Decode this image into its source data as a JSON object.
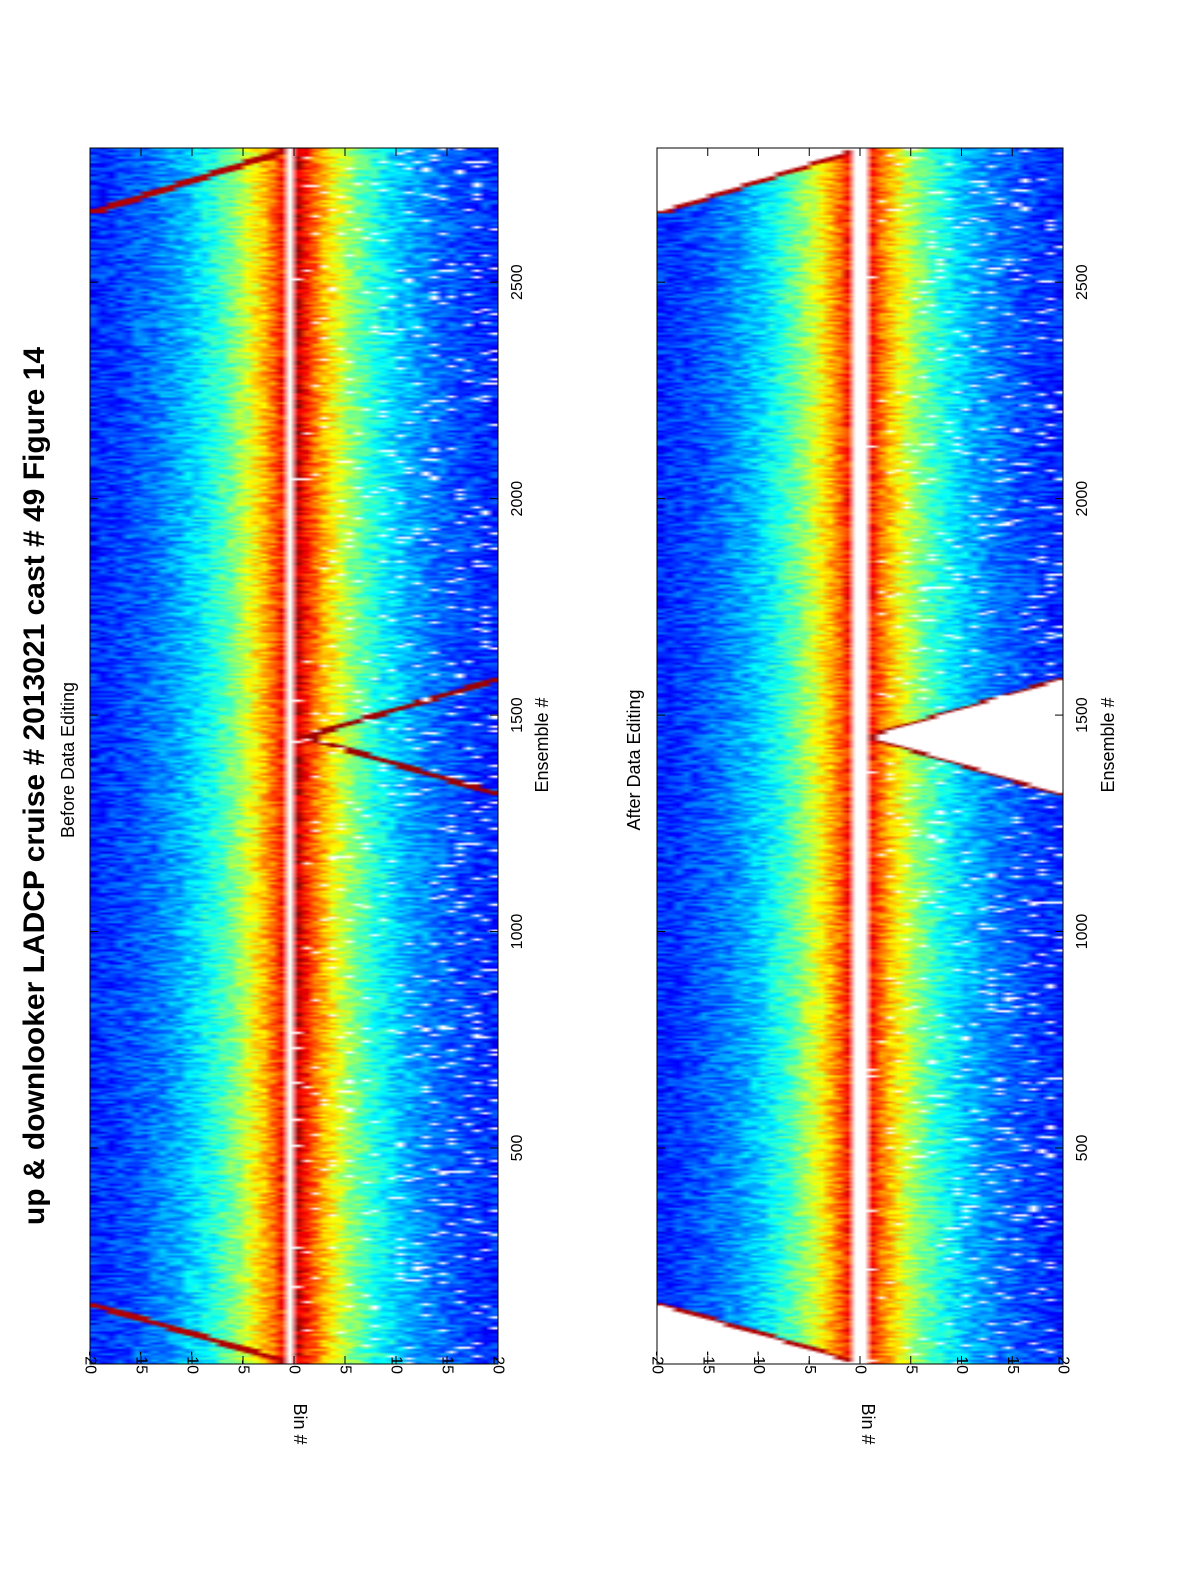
{
  "title": "up & downlooker LADCP cruise # 2013021 cast # 49  Figure 14",
  "chart_data": [
    {
      "type": "heatmap",
      "title": "Before Data Editing",
      "xlabel": "Ensemble #",
      "ylabel": "Bin #",
      "xlim": [
        1,
        2810
      ],
      "ylim": [
        -20,
        20
      ],
      "xticks": [
        500,
        1000,
        1500,
        2000,
        2500
      ],
      "yticks": [
        -20,
        -15,
        -10,
        -5,
        0,
        5,
        10,
        15,
        20
      ],
      "colormap": "jet",
      "gap_bins": [
        -1,
        0
      ],
      "masked": false,
      "features": {
        "profile_max_bin": 20,
        "up_cast_start_ensemble": 140,
        "bottom_ensemble": 1450,
        "down_end_ensemble": 2660
      }
    },
    {
      "type": "heatmap",
      "title": "After Data Editing",
      "xlabel": "Ensemble #",
      "ylabel": "Bin #",
      "xlim": [
        1,
        2810
      ],
      "ylim": [
        -20,
        20
      ],
      "xticks": [
        500,
        1000,
        1500,
        2000,
        2500
      ],
      "yticks": [
        -20,
        -15,
        -10,
        -5,
        0,
        5,
        10,
        15,
        20
      ],
      "colormap": "jet",
      "gap_bins": [
        -1,
        1
      ],
      "masked": true,
      "features": {
        "profile_max_bin": 20,
        "up_cast_start_ensemble": 140,
        "bottom_ensemble": 1450,
        "down_end_ensemble": 2660
      }
    }
  ]
}
